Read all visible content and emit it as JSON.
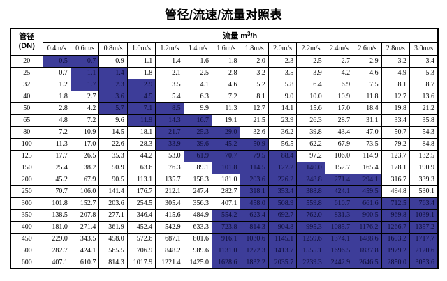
{
  "title": "管径/流速/流量对照表",
  "colors": {
    "highlight_background": "#3D3D99",
    "highlight_text": "#0E0E38",
    "border": "#000000",
    "text": "#000000",
    "page_background": "#FFFFFF"
  },
  "table": {
    "dn_header": {
      "line1": "管径",
      "line2": "(DN)"
    },
    "flow_header": {
      "label": "流量 m",
      "sup": "3",
      "tail": "/h"
    },
    "velocity_headers": [
      "0.4m/s",
      "0.6m/s",
      "0.8m/s",
      "1.0m/s",
      "1.2m/s",
      "1.4m/s",
      "1.6m/s",
      "1.8m/s",
      "2.0m/s",
      "2.2m/s",
      "2.4m/s",
      "2.6m/s",
      "2.8m/s",
      "3.0m/s"
    ],
    "rows": [
      {
        "dn": "20",
        "values": [
          "0.5",
          "0.7",
          "0.9",
          "1.1",
          "1.4",
          "1.6",
          "1.8",
          "2.0",
          "2.3",
          "2.5",
          "2.7",
          "2.9",
          "3.2",
          "3.4"
        ],
        "highlight_cols": [
          0,
          1
        ]
      },
      {
        "dn": "25",
        "values": [
          "0.7",
          "1.1",
          "1.4",
          "1.8",
          "2.1",
          "2.5",
          "2.8",
          "3.2",
          "3.5",
          "3.9",
          "4.2",
          "4.6",
          "4.9",
          "5.3"
        ],
        "highlight_cols": [
          1,
          2
        ]
      },
      {
        "dn": "32",
        "values": [
          "1.2",
          "1.7",
          "2.3",
          "2.9",
          "3.5",
          "4.1",
          "4.6",
          "5.2",
          "5.8",
          "6.4",
          "6.9",
          "7.5",
          "8.1",
          "8.7"
        ],
        "highlight_cols": [
          1,
          3
        ]
      },
      {
        "dn": "40",
        "values": [
          "1.8",
          "2.7",
          "3.6",
          "4.5",
          "5.4",
          "6.3",
          "7.2",
          "8.1",
          "9.0",
          "10.0",
          "10.9",
          "11.8",
          "12.7",
          "13.6"
        ],
        "highlight_cols": [
          2,
          3
        ]
      },
      {
        "dn": "50",
        "values": [
          "2.8",
          "4.2",
          "5.7",
          "7.1",
          "8.5",
          "9.9",
          "11.3",
          "12.7",
          "14.1",
          "15.6",
          "17.0",
          "18.4",
          "19.8",
          "21.2"
        ],
        "highlight_cols": [
          2,
          4
        ]
      },
      {
        "dn": "65",
        "values": [
          "4.8",
          "7.2",
          "9.6",
          "11.9",
          "14.3",
          "16.7",
          "19.1",
          "21.5",
          "23.9",
          "26.3",
          "28.7",
          "31.1",
          "33.4",
          "35.8"
        ],
        "highlight_cols": [
          3,
          5
        ]
      },
      {
        "dn": "80",
        "values": [
          "7.2",
          "10.9",
          "14.5",
          "18.1",
          "21.7",
          "25.3",
          "29.0",
          "32.6",
          "36.2",
          "39.8",
          "43.4",
          "47.0",
          "50.7",
          "54.3"
        ],
        "highlight_cols": [
          4,
          6
        ]
      },
      {
        "dn": "100",
        "values": [
          "11.3",
          "17.0",
          "22.6",
          "28.3",
          "33.9",
          "39.6",
          "45.2",
          "50.9",
          "56.5",
          "62.2",
          "67.9",
          "73.5",
          "79.2",
          "84.8"
        ],
        "highlight_cols": [
          4,
          7
        ]
      },
      {
        "dn": "125",
        "values": [
          "17.7",
          "26.5",
          "35.3",
          "44.2",
          "53.0",
          "61.9",
          "70.7",
          "79.5",
          "88.4",
          "97.2",
          "106.0",
          "114.9",
          "123.7",
          "132.5"
        ],
        "highlight_cols": [
          5,
          8
        ]
      },
      {
        "dn": "150",
        "values": [
          "25.4",
          "38.2",
          "50.9",
          "63.6",
          "76.3",
          "89.1",
          "101.8",
          "114.5",
          "127.2",
          "140.0",
          "152.7",
          "165.4",
          "178.1",
          "190.9"
        ],
        "highlight_cols": [
          6,
          9
        ]
      },
      {
        "dn": "200",
        "values": [
          "45.2",
          "67.9",
          "90.5",
          "113.1",
          "135.7",
          "158.3",
          "181.0",
          "203.6",
          "226.2",
          "248.8",
          "271.4",
          "294.1",
          "316.7",
          "339.3"
        ],
        "highlight_cols": [
          7,
          11
        ]
      },
      {
        "dn": "250",
        "values": [
          "70.7",
          "106.0",
          "141.4",
          "176.7",
          "212.1",
          "247.4",
          "282.7",
          "318.1",
          "353.4",
          "388.8",
          "424.1",
          "459.5",
          "494.8",
          "530.1"
        ],
        "highlight_cols": [
          7,
          11
        ]
      },
      {
        "dn": "300",
        "values": [
          "101.8",
          "152.7",
          "203.6",
          "254.5",
          "305.4",
          "356.3",
          "407.1",
          "458.0",
          "508.9",
          "559.8",
          "610.7",
          "661.6",
          "712.5",
          "763.4"
        ],
        "highlight_cols": [
          7,
          13
        ]
      },
      {
        "dn": "350",
        "values": [
          "138.5",
          "207.8",
          "277.1",
          "346.4",
          "415.6",
          "484.9",
          "554.2",
          "623.4",
          "692.7",
          "762.0",
          "831.3",
          "900.5",
          "969.8",
          "1039.1"
        ],
        "highlight_cols": [
          6,
          13
        ]
      },
      {
        "dn": "400",
        "values": [
          "181.0",
          "271.4",
          "361.9",
          "452.4",
          "542.9",
          "633.3",
          "723.8",
          "814.3",
          "904.8",
          "995.3",
          "1085.7",
          "1176.2",
          "1266.7",
          "1357.2"
        ],
        "highlight_cols": [
          6,
          13
        ]
      },
      {
        "dn": "450",
        "values": [
          "229.0",
          "343.5",
          "458.0",
          "572.6",
          "687.1",
          "801.6",
          "916.1",
          "1030.6",
          "1145.1",
          "1259.6",
          "1374.1",
          "1488.6",
          "1603.2",
          "1717.7"
        ],
        "highlight_cols": [
          6,
          13
        ]
      },
      {
        "dn": "500",
        "values": [
          "282.7",
          "424.1",
          "565.5",
          "706.9",
          "848.2",
          "989.6",
          "1131.0",
          "1272.3",
          "1413.7",
          "1555.1",
          "1696.5",
          "1837.8",
          "1979.2",
          "2120.6"
        ],
        "highlight_cols": [
          6,
          13
        ]
      },
      {
        "dn": "600",
        "values": [
          "407.1",
          "610.7",
          "814.3",
          "1017.9",
          "1221.4",
          "1425.0",
          "1628.6",
          "1832.2",
          "2035.7",
          "2239.3",
          "2442.9",
          "2646.5",
          "2850.0",
          "3053.6"
        ],
        "highlight_cols": [
          6,
          13
        ]
      }
    ]
  }
}
